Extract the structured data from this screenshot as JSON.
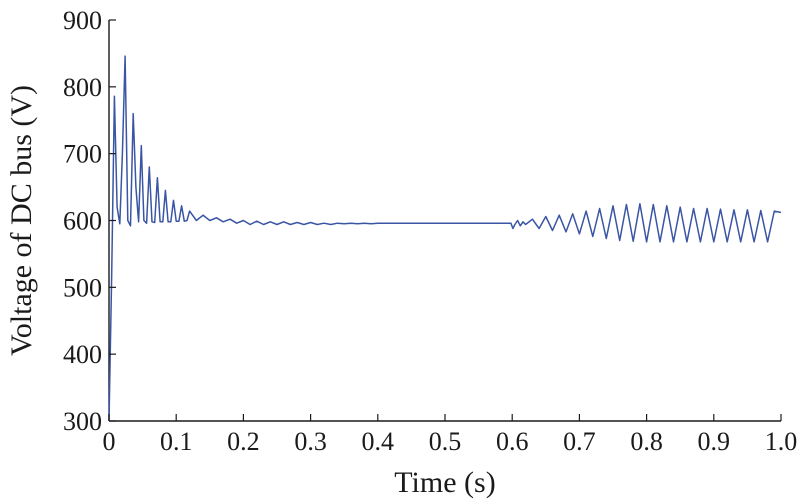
{
  "chart_data": {
    "type": "line",
    "title": "",
    "xlabel": "Time (s)",
    "ylabel": "Voltage of DC bus (V)",
    "xlim": [
      0,
      1.0
    ],
    "ylim": [
      300,
      900
    ],
    "xticks": [
      0,
      0.1,
      0.2,
      0.3,
      0.4,
      0.5,
      0.6,
      0.7,
      0.8,
      0.9,
      1.0
    ],
    "xtick_labels": [
      "0",
      "0.1",
      "0.2",
      "0.3",
      "0.4",
      "0.5",
      "0.6",
      "0.7",
      "0.8",
      "0.9",
      "1.0"
    ],
    "yticks": [
      300,
      400,
      500,
      600,
      700,
      800,
      900
    ],
    "ytick_labels": [
      "300",
      "400",
      "500",
      "600",
      "700",
      "800",
      "900"
    ],
    "grid": false,
    "legend": "none",
    "line_color": "#3a55a4",
    "series": [
      {
        "x": [
          0.0,
          0.004,
          0.008,
          0.012,
          0.016,
          0.02,
          0.024,
          0.028,
          0.032,
          0.036,
          0.04,
          0.044,
          0.048,
          0.052,
          0.056,
          0.06,
          0.064,
          0.068,
          0.072,
          0.076,
          0.08,
          0.084,
          0.088,
          0.092,
          0.096,
          0.1,
          0.104,
          0.108,
          0.112,
          0.116,
          0.12,
          0.13,
          0.14,
          0.15,
          0.16,
          0.17,
          0.18,
          0.19,
          0.2,
          0.21,
          0.22,
          0.23,
          0.24,
          0.25,
          0.26,
          0.27,
          0.28,
          0.29,
          0.3,
          0.31,
          0.32,
          0.33,
          0.34,
          0.35,
          0.36,
          0.37,
          0.38,
          0.39,
          0.4,
          0.42,
          0.44,
          0.46,
          0.48,
          0.5,
          0.52,
          0.54,
          0.56,
          0.58,
          0.598,
          0.601,
          0.604,
          0.608,
          0.612,
          0.616,
          0.62,
          0.63,
          0.64,
          0.65,
          0.66,
          0.67,
          0.68,
          0.69,
          0.7,
          0.71,
          0.72,
          0.73,
          0.74,
          0.75,
          0.76,
          0.77,
          0.78,
          0.79,
          0.8,
          0.81,
          0.82,
          0.83,
          0.84,
          0.85,
          0.86,
          0.87,
          0.88,
          0.89,
          0.9,
          0.91,
          0.92,
          0.93,
          0.94,
          0.95,
          0.96,
          0.97,
          0.98,
          0.99,
          1.0
        ],
        "y": [
          300,
          520,
          786,
          620,
          595,
          700,
          846,
          600,
          592,
          760,
          650,
          598,
          712,
          600,
          596,
          680,
          598,
          597,
          664,
          598,
          598,
          645,
          598,
          598,
          630,
          599,
          599,
          622,
          599,
          600,
          614,
          600,
          608,
          600,
          604,
          598,
          602,
          596,
          600,
          594,
          599,
          594,
          598,
          594,
          598,
          594,
          597,
          594,
          597,
          594,
          596,
          594,
          596,
          595,
          596,
          595,
          596,
          595,
          596,
          596,
          596,
          596,
          596,
          596,
          596,
          596,
          596,
          596,
          596,
          588,
          594,
          600,
          592,
          598,
          594,
          602,
          588,
          606,
          585,
          608,
          583,
          610,
          580,
          614,
          576,
          618,
          573,
          622,
          570,
          624,
          569,
          625,
          568,
          624,
          568,
          622,
          568,
          620,
          568,
          618,
          568,
          618,
          568,
          617,
          568,
          616,
          568,
          616,
          568,
          615,
          568,
          614,
          612
        ]
      }
    ]
  }
}
